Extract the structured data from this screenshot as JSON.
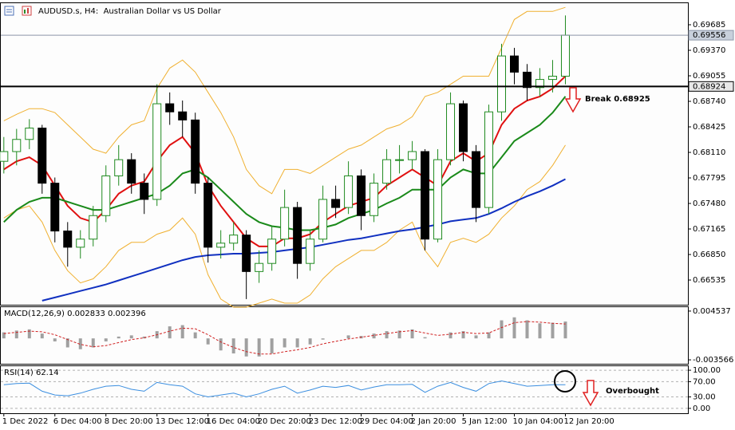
{
  "chart_data": [
    {
      "type": "candlestick",
      "title": "AUDUSD.s, H4:  Australian Dollar vs US Dollar",
      "open": [
        0.68,
        0.6812,
        0.6827,
        0.6841,
        0.6773,
        0.6714,
        0.6694,
        0.6704,
        0.6733,
        0.6782,
        0.6802,
        0.6773,
        0.6753,
        0.6871,
        0.6861,
        0.6851,
        0.6773,
        0.6694,
        0.6699,
        0.6709,
        0.6664,
        0.6674,
        0.6704,
        0.6743,
        0.6674,
        0.6704,
        0.6753,
        0.6743,
        0.6782,
        0.6733,
        0.6773,
        0.6802,
        0.6802,
        0.6812,
        0.6704,
        0.6802,
        0.6871,
        0.6812,
        0.6743,
        0.6861,
        0.693,
        0.691,
        0.6891,
        0.6901,
        0.6905
      ],
      "high": [
        0.683,
        0.684,
        0.6852,
        0.6845,
        0.678,
        0.6725,
        0.6715,
        0.6745,
        0.6795,
        0.682,
        0.681,
        0.6785,
        0.6895,
        0.6885,
        0.6875,
        0.686,
        0.678,
        0.6715,
        0.6725,
        0.6715,
        0.669,
        0.672,
        0.6765,
        0.675,
        0.6715,
        0.677,
        0.677,
        0.68,
        0.679,
        0.6785,
        0.6815,
        0.682,
        0.6825,
        0.6815,
        0.6815,
        0.6885,
        0.6875,
        0.682,
        0.687,
        0.6945,
        0.694,
        0.692,
        0.6915,
        0.6925,
        0.698
      ],
      "low": [
        0.6785,
        0.6795,
        0.6815,
        0.676,
        0.67,
        0.667,
        0.668,
        0.6695,
        0.6725,
        0.677,
        0.676,
        0.6735,
        0.6745,
        0.6845,
        0.683,
        0.676,
        0.6675,
        0.668,
        0.669,
        0.663,
        0.665,
        0.6665,
        0.6695,
        0.6655,
        0.6665,
        0.67,
        0.673,
        0.6735,
        0.6715,
        0.6725,
        0.6765,
        0.6785,
        0.679,
        0.669,
        0.67,
        0.6795,
        0.68,
        0.6725,
        0.6735,
        0.685,
        0.6895,
        0.6875,
        0.688,
        0.6885,
        0.6895
      ],
      "close": [
        0.6812,
        0.6827,
        0.6841,
        0.6773,
        0.6714,
        0.6694,
        0.6704,
        0.6733,
        0.6782,
        0.6802,
        0.6773,
        0.6753,
        0.6871,
        0.6861,
        0.6851,
        0.6773,
        0.6694,
        0.6699,
        0.6709,
        0.6664,
        0.6674,
        0.6704,
        0.6743,
        0.6674,
        0.6704,
        0.6753,
        0.6743,
        0.6782,
        0.6733,
        0.6773,
        0.6802,
        0.6802,
        0.6812,
        0.6704,
        0.6802,
        0.6871,
        0.6812,
        0.6743,
        0.6861,
        0.693,
        0.691,
        0.6891,
        0.6901,
        0.6905,
        0.69556
      ],
      "up_color": "#1f8a1f",
      "down_color": "#000000",
      "overlays": [
        {
          "color": "#f0b030",
          "values": [
            0.685,
            0.6858,
            0.6865,
            0.6865,
            0.686,
            0.6845,
            0.683,
            0.6815,
            0.681,
            0.683,
            0.6845,
            0.685,
            0.689,
            0.6915,
            0.6925,
            0.691,
            0.6885,
            0.686,
            0.683,
            0.679,
            0.677,
            0.676,
            0.679,
            0.679,
            0.6785,
            0.6795,
            0.6805,
            0.6815,
            0.682,
            0.683,
            0.684,
            0.6845,
            0.6855,
            0.688,
            0.6885,
            0.6895,
            0.6905,
            0.6905,
            0.6905,
            0.694,
            0.6975,
            0.6985,
            0.6985,
            0.6985,
            0.699
          ]
        },
        {
          "color": "#f0b030",
          "values": [
            0.673,
            0.674,
            0.6745,
            0.6725,
            0.669,
            0.6665,
            0.665,
            0.6655,
            0.667,
            0.669,
            0.67,
            0.67,
            0.671,
            0.6715,
            0.673,
            0.671,
            0.666,
            0.663,
            0.662,
            0.662,
            0.6625,
            0.663,
            0.6625,
            0.6625,
            0.6635,
            0.6655,
            0.667,
            0.668,
            0.669,
            0.669,
            0.67,
            0.6715,
            0.6725,
            0.669,
            0.667,
            0.67,
            0.6705,
            0.67,
            0.671,
            0.673,
            0.6745,
            0.6765,
            0.6775,
            0.6795,
            0.682
          ]
        },
        {
          "color": "#e01010",
          "values": [
            0.679,
            0.68,
            0.6805,
            0.6795,
            0.677,
            0.6745,
            0.673,
            0.6725,
            0.674,
            0.676,
            0.677,
            0.6775,
            0.68,
            0.682,
            0.683,
            0.681,
            0.677,
            0.6745,
            0.6725,
            0.6705,
            0.6695,
            0.6695,
            0.6705,
            0.6705,
            0.671,
            0.6725,
            0.6735,
            0.6745,
            0.675,
            0.6755,
            0.677,
            0.678,
            0.679,
            0.678,
            0.677,
            0.68,
            0.681,
            0.68,
            0.681,
            0.6845,
            0.6865,
            0.6875,
            0.688,
            0.689,
            0.6905
          ]
        },
        {
          "color": "#1a8a1a",
          "values": [
            0.6725,
            0.674,
            0.675,
            0.6755,
            0.6755,
            0.675,
            0.6745,
            0.674,
            0.674,
            0.6745,
            0.675,
            0.6755,
            0.676,
            0.677,
            0.6785,
            0.679,
            0.678,
            0.6765,
            0.675,
            0.6735,
            0.6725,
            0.672,
            0.6718,
            0.6715,
            0.6715,
            0.6718,
            0.6722,
            0.673,
            0.6735,
            0.674,
            0.6748,
            0.6755,
            0.6765,
            0.6765,
            0.6765,
            0.678,
            0.679,
            0.6785,
            0.6785,
            0.6805,
            0.6825,
            0.6835,
            0.6845,
            0.686,
            0.688
          ]
        },
        {
          "color": "#1030c0",
          "values": [
            null,
            null,
            null,
            0.6628,
            0.6632,
            0.6636,
            0.664,
            0.6644,
            0.6648,
            0.6653,
            0.6658,
            0.6663,
            0.6668,
            0.6673,
            0.6678,
            0.6682,
            0.6684,
            0.6685,
            0.6686,
            0.6686,
            0.6687,
            0.6688,
            0.669,
            0.6692,
            0.6694,
            0.6697,
            0.67,
            0.6703,
            0.6705,
            0.6708,
            0.6711,
            0.6714,
            0.6716,
            0.6719,
            0.6722,
            0.6726,
            0.6728,
            0.673,
            0.6735,
            0.6742,
            0.675,
            0.6757,
            0.6763,
            0.677,
            0.6778
          ]
        }
      ],
      "levels": [
        {
          "value": 0.69556,
          "color": "#8c96a8"
        },
        {
          "value": 0.68924,
          "color": "#000000"
        }
      ],
      "ylim": [
        0.6623,
        0.69951
      ],
      "yticks": [
        0.69685,
        {
          "value": 0.6937,
          "label": "0.69370"
        },
        0.69055,
        {
          "value": 0.6874,
          "label": "0.68740"
        },
        0.68425,
        {
          "value": 0.6811,
          "label": "0.68110"
        },
        0.67795,
        {
          "value": 0.6748,
          "label": "0.67480"
        },
        0.67165,
        {
          "value": 0.6685,
          "label": "0.66850"
        },
        0.66535
      ],
      "xlim": [
        -0.3,
        53.6
      ],
      "xticks": [
        {
          "value": 0,
          "label": "1 Dec 2022"
        },
        {
          "value": 4,
          "label": "6 Dec 04:00"
        },
        {
          "value": 8,
          "label": "8 Dec 20:00"
        },
        {
          "value": 12,
          "label": "13 Dec 12:00"
        },
        {
          "value": 16,
          "label": "16 Dec 04:00"
        },
        {
          "value": 20,
          "label": "20 Dec 20:00"
        },
        {
          "value": 24,
          "label": "23 Dec 12:00"
        },
        {
          "value": 28,
          "label": "29 Dec 04:00"
        },
        {
          "value": 32,
          "label": "2 Jan 20:00"
        },
        {
          "value": 36,
          "label": "5 Jan 12:00"
        },
        {
          "value": 40,
          "label": "10 Jan 04:00"
        },
        {
          "value": 44,
          "label": "12 Jan 20:00"
        }
      ],
      "annotations": [
        "Break 0.68925"
      ]
    },
    {
      "type": "macd",
      "title": "MACD(12,26,9) 0.002833 0.002396",
      "histogram": [
        0.001,
        0.0013,
        0.0015,
        0.0008,
        -0.0005,
        -0.0015,
        -0.0018,
        -0.0015,
        -0.0005,
        0.0003,
        0.0005,
        0.0003,
        0.0012,
        0.002,
        0.0022,
        0.001,
        -0.001,
        -0.002,
        -0.0025,
        -0.003,
        -0.003,
        -0.0025,
        -0.0015,
        -0.0015,
        -0.001,
        -0.0002,
        0.0,
        0.0005,
        0.0004,
        0.0008,
        0.0012,
        0.0013,
        0.0015,
        0.0002,
        0.0,
        0.001,
        0.0012,
        0.0005,
        0.001,
        0.003,
        0.0035,
        0.003,
        0.0025,
        0.0026,
        0.0028
      ],
      "signal": [
        0.0008,
        0.001,
        0.0012,
        0.0011,
        0.0006,
        -0.0002,
        -0.001,
        -0.0014,
        -0.0012,
        -0.0007,
        -0.0002,
        0.0001,
        0.0006,
        0.0012,
        0.0017,
        0.0016,
        0.0006,
        -0.0006,
        -0.0015,
        -0.0022,
        -0.0026,
        -0.0026,
        -0.0022,
        -0.0019,
        -0.0015,
        -0.0009,
        -0.0005,
        -0.0001,
        0.0002,
        0.0005,
        0.0008,
        0.0011,
        0.0013,
        0.0009,
        0.0005,
        0.0007,
        0.001,
        0.0008,
        0.0009,
        0.0018,
        0.0026,
        0.0028,
        0.0027,
        0.0025,
        0.0024
      ],
      "histogram_color": "#a0a0a0",
      "signal_color": "#d02020",
      "ylim": [
        -0.004219,
        0.00519
      ],
      "yticks": [
        0.004537,
        -0.003566
      ]
    },
    {
      "type": "line",
      "title": "RSI(14) 62.14",
      "values": [
        62,
        65,
        66,
        45,
        35,
        33,
        40,
        50,
        58,
        60,
        50,
        45,
        68,
        62,
        58,
        38,
        30,
        35,
        40,
        30,
        38,
        50,
        58,
        40,
        48,
        58,
        55,
        60,
        48,
        56,
        62,
        62,
        63,
        42,
        58,
        68,
        55,
        45,
        65,
        72,
        65,
        58,
        60,
        62,
        62.14
      ],
      "color": "#3a8ee0",
      "ylim": [
        -12.8,
        110.6
      ],
      "yticks": [
        {
          "value": 100,
          "label": "100.00"
        },
        {
          "value": 70,
          "label": "70.00"
        },
        {
          "value": 30,
          "label": "30.00"
        },
        {
          "value": 0,
          "label": "0.00"
        }
      ],
      "annotations": [
        "Overbought"
      ]
    }
  ]
}
